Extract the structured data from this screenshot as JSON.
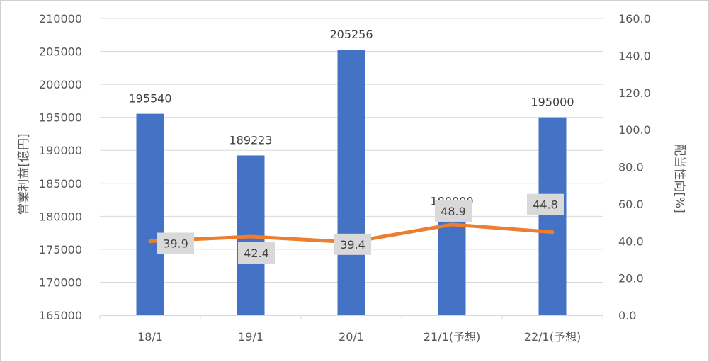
{
  "chart_data": {
    "type": "bar",
    "categories": [
      "18/1",
      "19/1",
      "20/1",
      "21/1(予想)",
      "22/1(予想)"
    ],
    "series": [
      {
        "type": "bar",
        "axis": "left",
        "color": "#4472C4",
        "values": [
          195540,
          189223,
          205256,
          180000,
          195000
        ]
      },
      {
        "type": "line",
        "axis": "right",
        "color": "#ED7D31",
        "values": [
          39.9,
          42.4,
          39.4,
          48.9,
          44.8
        ]
      }
    ],
    "y_left": {
      "label": "営業利益[億円]",
      "range": [
        165000,
        210000
      ],
      "ticks": [
        "165000",
        "170000",
        "175000",
        "180000",
        "185000",
        "190000",
        "195000",
        "200000",
        "205000",
        "210000"
      ]
    },
    "y_right": {
      "label": "配当性向[%]",
      "range": [
        0,
        160
      ],
      "ticks": [
        "0.0",
        "20.0",
        "40.0",
        "60.0",
        "80.0",
        "100.0",
        "120.0",
        "140.0",
        "160.0"
      ]
    },
    "bar_labels": [
      "195540",
      "189223",
      "205256",
      "180000",
      "195000"
    ],
    "line_labels": [
      "39.9",
      "42.4",
      "39.4",
      "48.9",
      "44.8"
    ],
    "grid": true,
    "legend": "none",
    "colors": {
      "gridline": "#d9d9d9",
      "label_box": "#d9d9d9",
      "text": "#595959"
    }
  }
}
